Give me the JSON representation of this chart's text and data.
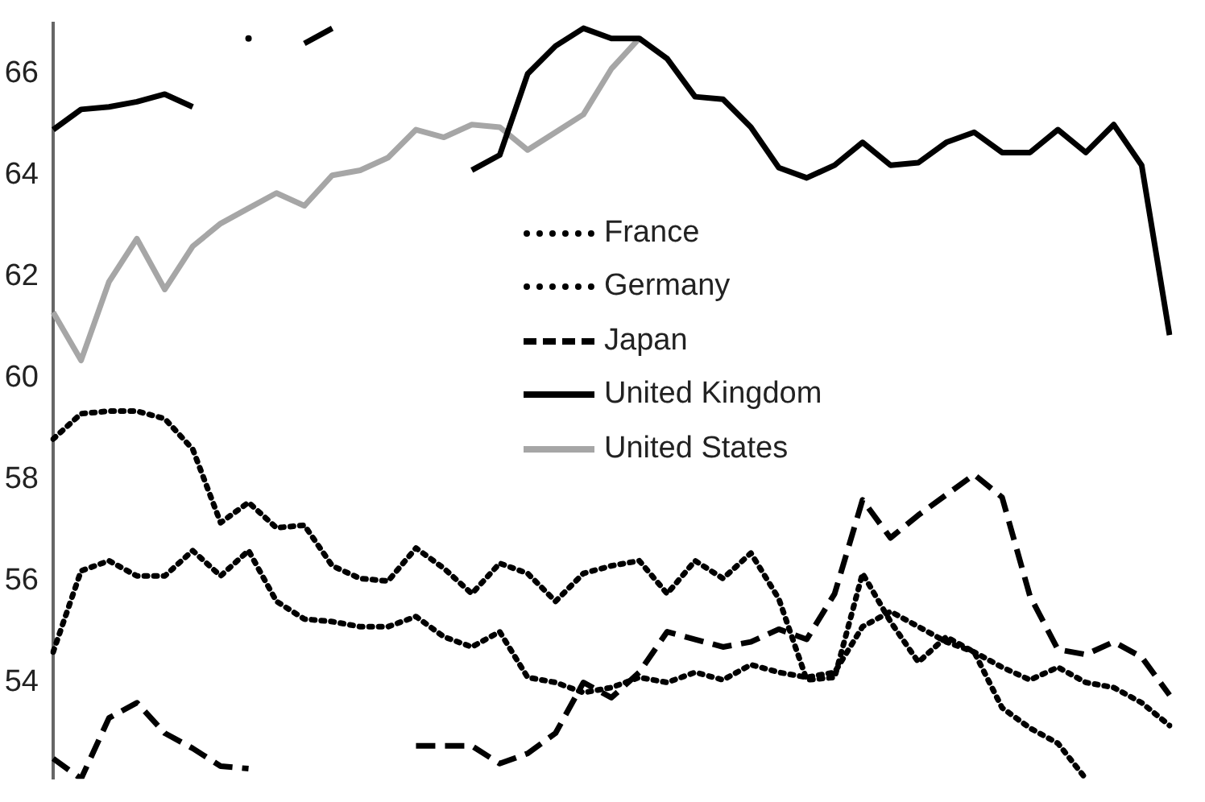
{
  "chart_data": {
    "type": "line",
    "categories": [
      null,
      null,
      null,
      null,
      null,
      null,
      null,
      null,
      null,
      null,
      null,
      null,
      null,
      null,
      null,
      null,
      null,
      null,
      null,
      null,
      null,
      null,
      null,
      null,
      null,
      null,
      null,
      null,
      null,
      null,
      null,
      null,
      null,
      null,
      null,
      null,
      null,
      null,
      null,
      null,
      null
    ],
    "series": [
      {
        "name": "France",
        "color": "#000000",
        "line_style": "dotted",
        "values": [
          54.6,
          56.2,
          56.4,
          56.1,
          56.1,
          56.6,
          56.1,
          56.6,
          55.6,
          55.25,
          55.2,
          55.1,
          55.1,
          55.3,
          54.9,
          54.7,
          55.0,
          54.1,
          54.0,
          53.8,
          53.9,
          54.1,
          54.0,
          54.2,
          54.05,
          54.35,
          54.2,
          54.1,
          54.2,
          55.1,
          55.4,
          55.1,
          54.8,
          54.6,
          54.3,
          54.05,
          54.3,
          54.0,
          53.9,
          53.6,
          53.15
        ]
      },
      {
        "name": "Germany",
        "color": "#000000",
        "line_style": "dotted",
        "values": [
          58.8,
          59.3,
          59.35,
          59.35,
          59.2,
          58.6,
          57.15,
          57.55,
          57.05,
          57.1,
          56.3,
          56.05,
          56.0,
          56.65,
          56.25,
          55.75,
          56.35,
          56.15,
          55.6,
          56.15,
          56.3,
          56.4,
          55.75,
          56.4,
          56.05,
          56.55,
          55.65,
          54.05,
          54.1,
          56.15,
          55.2,
          54.4,
          54.9,
          54.6,
          53.5,
          53.1,
          52.8,
          52.1,
          null,
          null,
          null
        ]
      },
      {
        "name": "Japan",
        "color": "#000000",
        "line_style": "dashed",
        "values": [
          52.5,
          52.1,
          53.3,
          53.6,
          53.0,
          52.7,
          52.35,
          52.3,
          null,
          null,
          null,
          null,
          null,
          52.75,
          52.75,
          52.75,
          52.4,
          52.6,
          53.0,
          54.0,
          53.7,
          54.2,
          55.0,
          54.85,
          54.7,
          54.8,
          55.05,
          54.85,
          55.75,
          57.6,
          56.85,
          57.3,
          57.7,
          58.1,
          57.65,
          55.7,
          54.65,
          54.55,
          54.8,
          54.5,
          53.75
        ]
      },
      {
        "name": "United Kingdom",
        "color": "#000000",
        "line_style": "solid",
        "values": [
          64.9,
          65.3,
          65.35,
          65.45,
          65.6,
          65.35,
          null,
          66.7,
          null,
          66.6,
          66.9,
          null,
          null,
          null,
          null,
          64.1,
          64.4,
          66.0,
          66.55,
          66.9,
          66.7,
          66.7,
          66.3,
          65.55,
          65.5,
          64.95,
          64.15,
          63.95,
          64.2,
          64.65,
          64.2,
          64.25,
          64.65,
          64.85,
          64.45,
          64.45,
          64.9,
          64.45,
          65.0,
          64.2,
          60.85
        ]
      },
      {
        "name": "United States",
        "color": "#a6a6a6",
        "line_style": "solid",
        "values": [
          61.3,
          60.35,
          61.9,
          62.75,
          61.75,
          62.6,
          63.05,
          63.35,
          63.65,
          63.4,
          64.0,
          64.1,
          64.35,
          64.9,
          64.75,
          65.0,
          64.95,
          64.5,
          64.85,
          65.2,
          66.1,
          66.7,
          null,
          null,
          null,
          null,
          null,
          null,
          null,
          null,
          null,
          null,
          null,
          null,
          null,
          null,
          null,
          null,
          null,
          null,
          null
        ]
      }
    ],
    "ylim": [
      52.1,
      67
    ],
    "yticks": [
      54,
      56,
      58,
      60,
      62,
      64,
      66
    ],
    "tick_labels": "y",
    "grid": false,
    "legend": "top",
    "marker": "none"
  }
}
